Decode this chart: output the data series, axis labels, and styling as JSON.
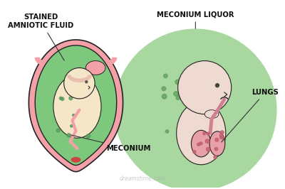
{
  "bg_color": "#ffffff",
  "title": "",
  "labels": {
    "stained_amniotic": "STAINED\nAMNIOTIC FLUID",
    "meconium": "MECONIUM",
    "meconium_liquor": "MECONIUM LIQUOR",
    "lungs": "LUNGS"
  },
  "colors": {
    "bg_color": "#ffffff",
    "uterus_outer": "#f4a0a8",
    "uterus_inner": "#e87880",
    "amniotic_fluid": "#7dc87d",
    "fetus_skin": "#f5e6c8",
    "fetus_skin2": "#eedad0",
    "placenta": "#f4a0a8",
    "meconium_dots": "#5a9a5a",
    "lungs_color": "#e8a0a8",
    "lungs_dots": "#c06070",
    "trachea": "#d08090",
    "cervix": "#cc4444",
    "circle_bg": "#a8d8a0",
    "line_color": "#333333",
    "text_color": "#111111",
    "dark_outline": "#222222",
    "brain_color": "#e8c0b0"
  },
  "watermark": "dreamstime.com"
}
